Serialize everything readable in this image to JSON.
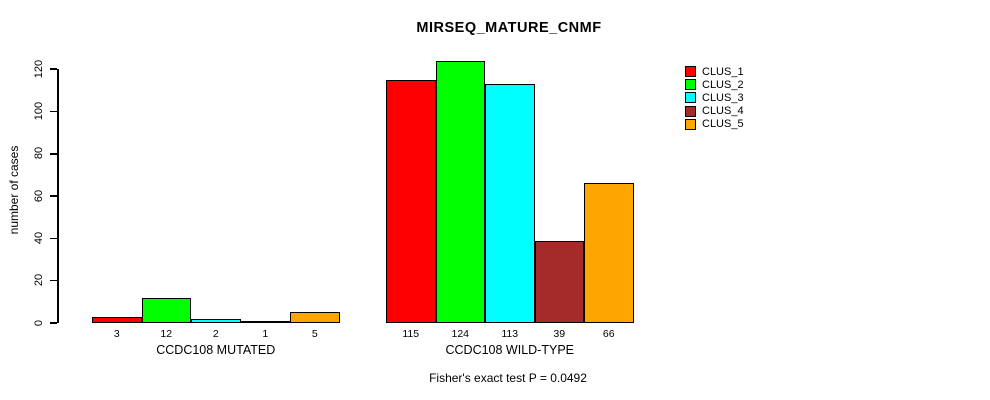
{
  "title": "MIRSEQ_MATURE_CNMF",
  "y_axis_label": "number of cases",
  "footer_note": "Fisher's exact test P = 0.0492",
  "chart_data": {
    "type": "bar",
    "title": "MIRSEQ_MATURE_CNMF",
    "xlabel": "",
    "ylabel": "number of cases",
    "ylim": [
      0,
      130
    ],
    "yticks": [
      0,
      20,
      40,
      60,
      80,
      100,
      120
    ],
    "grid": false,
    "legend_position": "right",
    "bar_value_labels_shown": true,
    "categories": [
      "CCDC108 MUTATED",
      "CCDC108 WILD-TYPE"
    ],
    "series": [
      {
        "name": "CLUS_1",
        "color": "#ff0000",
        "values": [
          3,
          115
        ]
      },
      {
        "name": "CLUS_2",
        "color": "#00ff00",
        "values": [
          12,
          124
        ]
      },
      {
        "name": "CLUS_3",
        "color": "#00ffff",
        "values": [
          2,
          113
        ]
      },
      {
        "name": "CLUS_4",
        "color": "#a52a2a",
        "values": [
          1,
          39
        ]
      },
      {
        "name": "CLUS_5",
        "color": "#ffa500",
        "values": [
          5,
          66
        ]
      }
    ],
    "annotation": "Fisher's exact test P = 0.0492"
  }
}
